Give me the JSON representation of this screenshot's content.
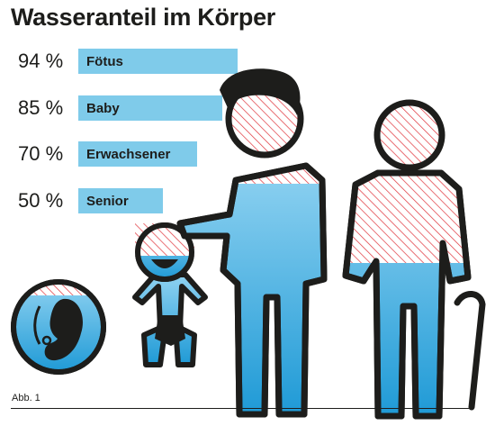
{
  "chart_data": {
    "type": "bar",
    "title": "Wasseranteil im Körper",
    "categories": [
      "Fötus",
      "Baby",
      "Erwachsener",
      "Senior"
    ],
    "values": [
      94,
      85,
      70,
      50
    ],
    "value_labels": [
      "94 %",
      "85 %",
      "70 %",
      "50 %"
    ],
    "orientation": "horizontal",
    "xlim": [
      0,
      100
    ],
    "grid": false,
    "legend": "none"
  },
  "figure_label": "Abb. 1",
  "colors": {
    "bar": "#7fcbea",
    "water": "#2ea8de",
    "water_light": "#79c6ec",
    "outline": "#1d1d1b",
    "hatch": "#e0333a"
  },
  "icons": [
    "fetus-icon",
    "baby-icon",
    "adult-icon",
    "senior-icon"
  ]
}
